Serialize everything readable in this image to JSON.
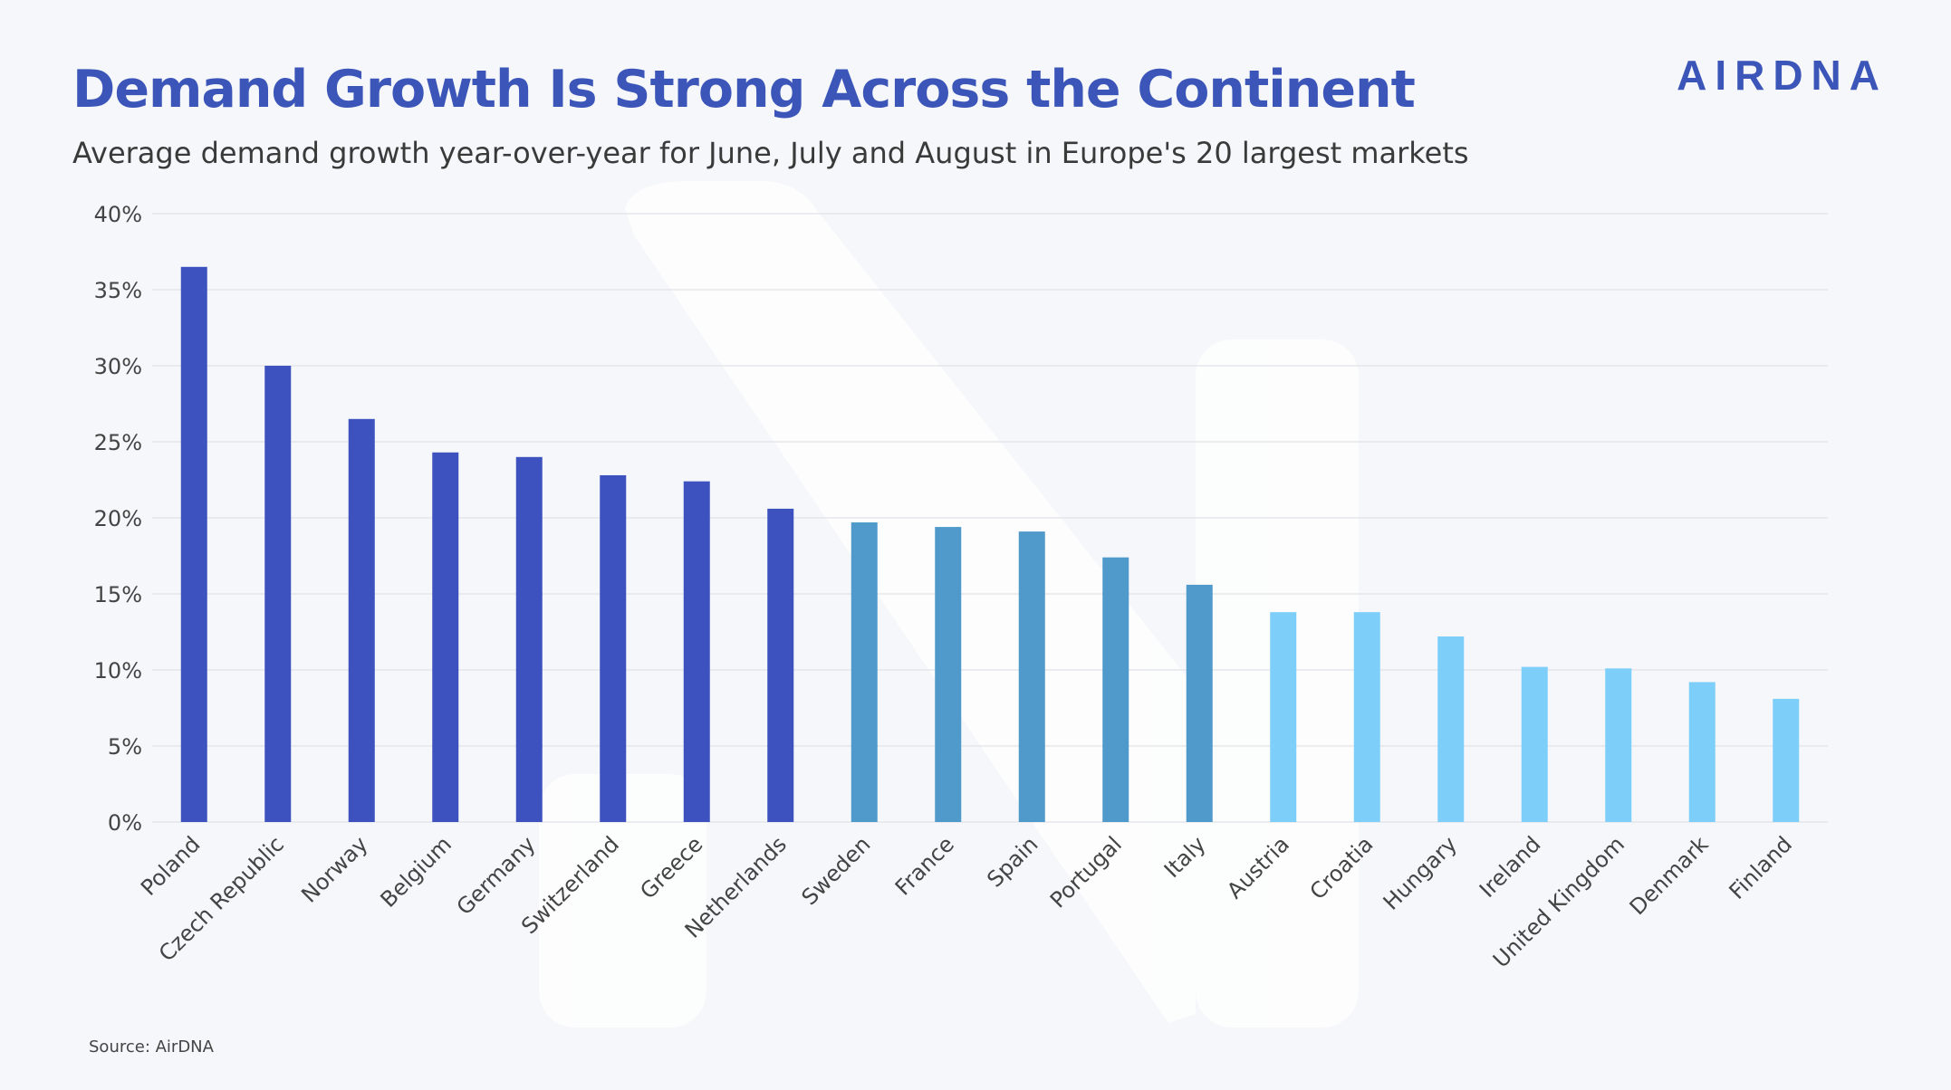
{
  "header": {
    "title": "Demand Growth Is Strong Across the Continent",
    "subtitle": "Average demand growth year-over-year for June, July and August in Europe's 20 largest markets",
    "logo": "AIRDNA"
  },
  "footer": {
    "source": "Source: AirDNA"
  },
  "colors": {
    "title": "#3b55b8",
    "bar_high": "#3d52bf",
    "bar_mid": "#4f9acb",
    "bar_low": "#7dcffa",
    "gridline": "#e3e6ec",
    "background": "#f5f7fa"
  },
  "chart_data": {
    "type": "bar",
    "title": "Demand Growth Is Strong Across the Continent",
    "subtitle": "Average demand growth year-over-year for June, July and August in Europe's 20 largest markets",
    "xlabel": "",
    "ylabel": "",
    "ylim": [
      0,
      40
    ],
    "y_ticks": [
      "0%",
      "5%",
      "10%",
      "15%",
      "20%",
      "25%",
      "30%",
      "35%",
      "40%"
    ],
    "grid": true,
    "legend": "none",
    "categories": [
      "Poland",
      "Czech Republic",
      "Norway",
      "Belgium",
      "Germany",
      "Switzerland",
      "Greece",
      "Netherlands",
      "Sweden",
      "France",
      "Spain",
      "Portugal",
      "Italy",
      "Austria",
      "Croatia",
      "Hungary",
      "Ireland",
      "United Kingdom",
      "Denmark",
      "Finland"
    ],
    "values": [
      36.5,
      30.0,
      26.5,
      24.3,
      24.0,
      22.8,
      22.4,
      20.6,
      19.7,
      19.4,
      19.1,
      17.4,
      15.6,
      13.8,
      13.8,
      12.2,
      10.2,
      10.1,
      9.2,
      8.1
    ],
    "color_groups": [
      "high",
      "high",
      "high",
      "high",
      "high",
      "high",
      "high",
      "high",
      "mid",
      "mid",
      "mid",
      "mid",
      "mid",
      "low",
      "low",
      "low",
      "low",
      "low",
      "low",
      "low"
    ]
  }
}
